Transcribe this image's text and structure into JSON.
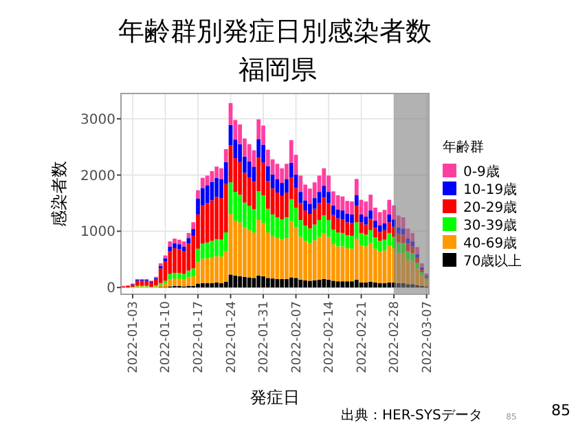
{
  "chart_data": {
    "type": "bar",
    "stacked": true,
    "title": "年齢群別発症日別感染者数",
    "subtitle": "福岡県",
    "xlabel": "発症日",
    "ylabel": "感染者数",
    "legend_title": "年齢群",
    "legend": "right",
    "grid": true,
    "x": [
      "2022-01-01",
      "2022-01-02",
      "2022-01-03",
      "2022-01-04",
      "2022-01-05",
      "2022-01-06",
      "2022-01-07",
      "2022-01-08",
      "2022-01-09",
      "2022-01-10",
      "2022-01-11",
      "2022-01-12",
      "2022-01-13",
      "2022-01-14",
      "2022-01-15",
      "2022-01-16",
      "2022-01-17",
      "2022-01-18",
      "2022-01-19",
      "2022-01-20",
      "2022-01-21",
      "2022-01-22",
      "2022-01-23",
      "2022-01-24",
      "2022-01-25",
      "2022-01-26",
      "2022-01-27",
      "2022-01-28",
      "2022-01-29",
      "2022-01-30",
      "2022-01-31",
      "2022-02-01",
      "2022-02-02",
      "2022-02-03",
      "2022-02-04",
      "2022-02-05",
      "2022-02-06",
      "2022-02-07",
      "2022-02-08",
      "2022-02-09",
      "2022-02-10",
      "2022-02-11",
      "2022-02-12",
      "2022-02-13",
      "2022-02-14",
      "2022-02-15",
      "2022-02-16",
      "2022-02-17",
      "2022-02-18",
      "2022-02-19",
      "2022-02-20",
      "2022-02-21",
      "2022-02-22",
      "2022-02-23",
      "2022-02-24",
      "2022-02-25",
      "2022-02-26",
      "2022-02-27",
      "2022-02-28",
      "2022-03-01",
      "2022-03-02",
      "2022-03-03",
      "2022-03-04",
      "2022-03-05",
      "2022-03-06",
      "2022-03-07"
    ],
    "xlim": [
      "2021-12-31T12:00",
      "2022-03-07T12:00"
    ],
    "xticks": [
      "2022-01-03",
      "2022-01-10",
      "2022-01-17",
      "2022-01-24",
      "2022-01-31",
      "2022-02-07",
      "2022-02-14",
      "2022-02-21",
      "2022-02-28",
      "2022-03-07"
    ],
    "ylim": [
      -120,
      3450
    ],
    "yticks": [
      0,
      1000,
      2000,
      3000
    ],
    "series": [
      {
        "name": "70歳以上",
        "color": "#000000",
        "values": [
          0,
          0,
          0,
          0,
          0,
          0,
          0,
          0,
          10,
          10,
          20,
          30,
          30,
          20,
          30,
          30,
          70,
          80,
          80,
          80,
          90,
          80,
          100,
          230,
          210,
          200,
          190,
          180,
          170,
          210,
          200,
          170,
          160,
          150,
          150,
          150,
          180,
          170,
          140,
          130,
          120,
          130,
          140,
          150,
          140,
          120,
          110,
          110,
          110,
          110,
          140,
          90,
          90,
          100,
          90,
          80,
          80,
          90,
          90,
          80,
          80,
          60,
          60,
          40,
          30,
          20
        ]
      },
      {
        "name": "40-69歳",
        "color": "#ff9900",
        "values": [
          0,
          0,
          null,
          20,
          20,
          20,
          null,
          20,
          40,
          60,
          120,
          130,
          130,
          120,
          150,
          170,
          380,
          430,
          440,
          460,
          470,
          470,
          540,
          1080,
          980,
          960,
          870,
          840,
          810,
          990,
          950,
          810,
          750,
          730,
          700,
          730,
          1000,
          900,
          760,
          700,
          670,
          710,
          760,
          810,
          760,
          650,
          620,
          620,
          590,
          580,
          730,
          660,
          640,
          690,
          600,
          560,
          580,
          660,
          610,
          540,
          530,
          440,
          410,
          300,
          180,
          110
        ]
      },
      {
        "name": "30-39歳",
        "color": "#00ff00",
        "values": [
          0,
          0,
          10,
          10,
          10,
          10,
          10,
          20,
          30,
          50,
          100,
          100,
          100,
          100,
          120,
          140,
          240,
          270,
          280,
          290,
          300,
          300,
          340,
          560,
          510,
          490,
          450,
          430,
          410,
          510,
          490,
          420,
          390,
          370,
          360,
          370,
          390,
          350,
          300,
          270,
          260,
          280,
          300,
          320,
          300,
          260,
          250,
          240,
          230,
          230,
          290,
          220,
          210,
          230,
          200,
          190,
          190,
          220,
          200,
          180,
          180,
          150,
          140,
          100,
          60,
          30
        ]
      },
      {
        "name": "20-29歳",
        "color": "#ff0000",
        "values": [
          20,
          30,
          40,
          90,
          90,
          90,
          80,
          110,
          260,
          340,
          410,
          440,
          420,
          410,
          480,
          580,
          610,
          680,
          700,
          720,
          750,
          740,
          860,
          660,
          600,
          580,
          530,
          510,
          490,
          600,
          580,
          490,
          460,
          440,
          420,
          440,
          390,
          350,
          300,
          270,
          260,
          280,
          300,
          320,
          300,
          260,
          250,
          240,
          230,
          230,
          290,
          190,
          180,
          200,
          170,
          160,
          170,
          190,
          180,
          150,
          150,
          130,
          120,
          90,
          50,
          30
        ]
      },
      {
        "name": "10-19歳",
        "color": "#0000ff",
        "values": [
          0,
          0,
          10,
          20,
          20,
          20,
          20,
          20,
          40,
          60,
          80,
          90,
          90,
          80,
          100,
          120,
          280,
          310,
          320,
          330,
          340,
          340,
          390,
          360,
          330,
          320,
          290,
          280,
          270,
          330,
          320,
          270,
          250,
          240,
          230,
          240,
          260,
          240,
          200,
          180,
          180,
          190,
          200,
          210,
          200,
          170,
          160,
          160,
          150,
          150,
          190,
          140,
          140,
          150,
          130,
          120,
          120,
          140,
          130,
          120,
          110,
          90,
          90,
          60,
          40,
          20
        ]
      },
      {
        "name": "0-9歳",
        "color": "#ff3fa0",
        "values": [
          10,
          10,
          10,
          10,
          10,
          10,
          10,
          20,
          50,
          50,
          90,
          80,
          80,
          90,
          90,
          120,
          150,
          180,
          170,
          190,
          200,
          190,
          230,
          390,
          350,
          350,
          320,
          310,
          290,
          350,
          340,
          290,
          270,
          270,
          260,
          270,
          400,
          350,
          290,
          280,
          270,
          280,
          290,
          310,
          290,
          250,
          250,
          250,
          230,
          230,
          290,
          260,
          270,
          280,
          230,
          230,
          240,
          260,
          250,
          210,
          200,
          180,
          150,
          130,
          70,
          40
        ]
      }
    ],
    "bands": [
      {
        "axis": "x",
        "from": "2022-02-28",
        "to": "2022-03-07T12:00",
        "color": "#7f7f7f"
      }
    ],
    "annotations": [
      "出典：HER-SYSデータ",
      "85",
      "85"
    ]
  }
}
